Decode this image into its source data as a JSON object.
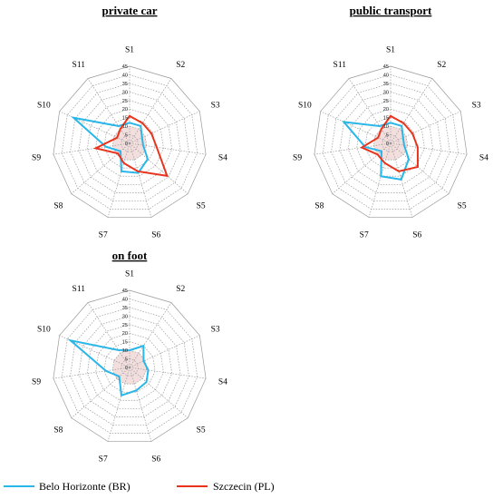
{
  "chart_data": [
    {
      "type": "radar",
      "title": "private car",
      "axes": [
        "S1",
        "S2",
        "S3",
        "S4",
        "S5",
        "S6",
        "S7",
        "S8",
        "S9",
        "S10",
        "S11"
      ],
      "ticks": [
        0,
        5,
        10,
        15,
        20,
        25,
        30,
        35,
        40,
        45
      ],
      "rlim": [
        0,
        45
      ],
      "grid": true,
      "series": [
        {
          "name": "Belo Horizonte (BR)",
          "values": [
            12,
            12,
            8,
            8,
            14,
            18,
            17,
            7,
            14,
            36,
            12
          ]
        },
        {
          "name": "Szczecin (PL)",
          "values": [
            16,
            14,
            14,
            16,
            29,
            17,
            12,
            9,
            20,
            8,
            10
          ]
        }
      ]
    },
    {
      "type": "radar",
      "title": "public transport",
      "axes": [
        "S1",
        "S2",
        "S3",
        "S4",
        "S5",
        "S6",
        "S7",
        "S8",
        "S9",
        "S10",
        "S11"
      ],
      "ticks": [
        0,
        5,
        10,
        15,
        20,
        25,
        30,
        35,
        40,
        45
      ],
      "rlim": [
        0,
        45
      ],
      "grid": true,
      "series": [
        {
          "name": "Belo Horizonte (BR)",
          "values": [
            12,
            12,
            8,
            8,
            14,
            22,
            20,
            7,
            15,
            30,
            12
          ]
        },
        {
          "name": "Szczecin (PL)",
          "values": [
            16,
            14,
            14,
            16,
            21,
            17,
            12,
            10,
            17,
            8,
            10
          ]
        }
      ]
    },
    {
      "type": "radar",
      "title": "on foot",
      "axes": [
        "S1",
        "S2",
        "S3",
        "S4",
        "S5",
        "S6",
        "S7",
        "S8",
        "S9",
        "S10",
        "S11"
      ],
      "ticks": [
        0,
        5,
        10,
        15,
        20,
        25,
        30,
        35,
        40,
        45
      ],
      "rlim": [
        0,
        45
      ],
      "grid": true,
      "series": [
        {
          "name": "Belo Horizonte (BR)",
          "values": [
            10,
            15,
            9,
            11,
            13,
            14,
            17,
            8,
            14,
            38,
            12
          ]
        }
      ]
    }
  ],
  "legend": {
    "position": "bottom",
    "items": [
      {
        "label": "Belo Horizonte (BR)",
        "color": "#29b6e8"
      },
      {
        "label": "Szczecin (PL)",
        "color": "#e8341c"
      }
    ]
  },
  "colors": {
    "grid": "#9a9a9a",
    "center_fill": "#f3dede"
  }
}
